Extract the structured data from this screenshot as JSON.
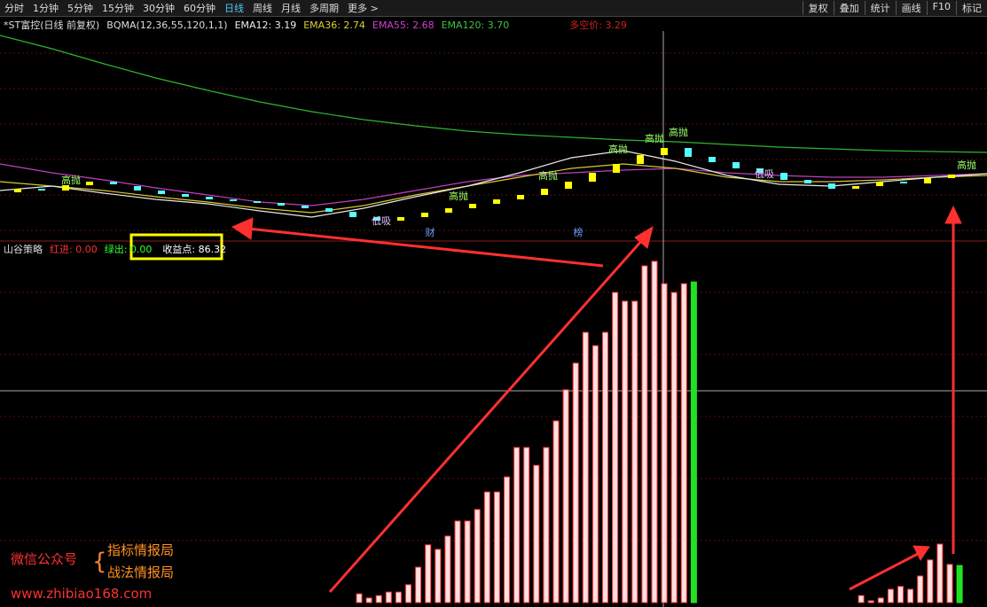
{
  "toolbar": {
    "left": [
      "分时",
      "1分钟",
      "5分钟",
      "15分钟",
      "30分钟",
      "60分钟",
      "日线",
      "周线",
      "月线",
      "多周期",
      "更多 >"
    ],
    "right": [
      "复权",
      "叠加",
      "统计",
      "画线",
      "F10",
      "标记"
    ]
  },
  "main_legend": {
    "stock": "*ST富控(日线 前复权)",
    "indicator": "BQMA(12,36,55,120,1,1)",
    "ema12": "EMA12: 3.19",
    "ema36": "EMA36: 2.74",
    "ema55": "EMA55: 2.68",
    "ema120": "EMA120: 3.70",
    "bull_bear": "多空价: 3.29"
  },
  "indicator_legend": {
    "name": "山谷策略",
    "red_in": "红进: 0.00",
    "green_out": "绿出: 0.00",
    "profit": "收益点: 86.32"
  },
  "watermark": {
    "label": "微信公众号",
    "line1": "指标情报局",
    "line2": "战法情报局",
    "url": "www.zhibiao168.com"
  },
  "chart_data": [
    {
      "type": "line",
      "ylim": [
        2.55,
        4.9
      ],
      "up_color": "#ffff00",
      "down_color": "#54ffff",
      "annotation_color": "#9dff6a",
      "annotations": [
        "高抛",
        "高抛",
        "高抛",
        "高抛",
        "高抛",
        "高抛",
        "高抛",
        "低吸",
        "低吸",
        "财",
        "榜"
      ],
      "series": [
        {
          "color": "#2fb52f",
          "values": [
            4.85,
            4.7,
            4.53,
            4.37,
            4.23,
            4.1,
            3.99,
            3.9,
            3.83,
            3.77,
            3.73,
            3.7,
            3.67,
            3.65,
            3.62,
            3.59,
            3.57,
            3.55,
            3.54,
            3.53
          ]
        },
        {
          "color": "#c040c0",
          "values": [
            3.4,
            3.3,
            3.22,
            3.13,
            3.05,
            2.97,
            2.93,
            3.0,
            3.1,
            3.2,
            3.27,
            3.3,
            3.33,
            3.35,
            3.3,
            3.27,
            3.25,
            3.25,
            3.27,
            3.29
          ]
        },
        {
          "color": "#d8c830",
          "values": [
            3.2,
            3.15,
            3.1,
            3.03,
            2.97,
            2.9,
            2.85,
            2.93,
            3.05,
            3.15,
            3.25,
            3.35,
            3.4,
            3.35,
            3.25,
            3.2,
            3.2,
            3.22,
            3.25,
            3.27
          ]
        },
        {
          "color": "#e8e8e8",
          "values": [
            3.1,
            3.15,
            3.07,
            3.0,
            2.95,
            2.87,
            2.8,
            2.9,
            3.03,
            3.15,
            3.3,
            3.47,
            3.55,
            3.43,
            3.27,
            3.17,
            3.15,
            3.2,
            3.25,
            3.29
          ]
        }
      ],
      "candles": [
        [
          3.08,
          3.12
        ],
        [
          3.12,
          3.1
        ],
        [
          3.1,
          3.16
        ],
        [
          3.16,
          3.2
        ],
        [
          3.2,
          3.17
        ],
        [
          3.15,
          3.1
        ],
        [
          3.1,
          3.06
        ],
        [
          3.06,
          3.03
        ],
        [
          3.03,
          3.0
        ],
        [
          3.0,
          2.98
        ],
        [
          2.98,
          2.96
        ],
        [
          2.96,
          2.93
        ],
        [
          2.93,
          2.9
        ],
        [
          2.9,
          2.86
        ],
        [
          2.86,
          2.8
        ],
        [
          2.8,
          2.76
        ],
        [
          2.76,
          2.8
        ],
        [
          2.8,
          2.85
        ],
        [
          2.85,
          2.9
        ],
        [
          2.9,
          2.95
        ],
        [
          2.95,
          3.0
        ],
        [
          3.0,
          3.05
        ],
        [
          3.05,
          3.12
        ],
        [
          3.12,
          3.2
        ],
        [
          3.2,
          3.3
        ],
        [
          3.3,
          3.4
        ],
        [
          3.4,
          3.5
        ],
        [
          3.5,
          3.58
        ],
        [
          3.58,
          3.48
        ],
        [
          3.48,
          3.42
        ],
        [
          3.42,
          3.35
        ],
        [
          3.35,
          3.3
        ],
        [
          3.3,
          3.22
        ],
        [
          3.22,
          3.18
        ],
        [
          3.18,
          3.12
        ],
        [
          3.12,
          3.15
        ],
        [
          3.15,
          3.2
        ],
        [
          3.2,
          3.18
        ],
        [
          3.18,
          3.24
        ],
        [
          3.24,
          3.28
        ]
      ]
    },
    {
      "type": "bar",
      "ylim": [
        0,
        100
      ],
      "series": [
        {
          "color": "#ff3a3a",
          "values": [
            2.5,
            1.3,
            2.0,
            3.0,
            3.0,
            5.1,
            10.1,
            16.5,
            15.2,
            19.0,
            23.3,
            23.3,
            26.6,
            31.6,
            31.6,
            35.9,
            44.3,
            44.3,
            39.2,
            44.3,
            51.9,
            60.8,
            68.4,
            77.2,
            73.4,
            77.2,
            88.6,
            86.1,
            86.1,
            96.2,
            97.5,
            91.1,
            88.6,
            91.1,
            null,
            null,
            null,
            null,
            null,
            null,
            null,
            null,
            null,
            null,
            null,
            null,
            null,
            null,
            null,
            null,
            null,
            2.0,
            0.5,
            1.3,
            3.8,
            4.6,
            3.8,
            7.6,
            12.2,
            16.7,
            10.9,
            null
          ]
        },
        {
          "color": "#22e022",
          "values": [
            null,
            null,
            null,
            null,
            null,
            null,
            null,
            null,
            null,
            null,
            null,
            null,
            null,
            null,
            null,
            null,
            null,
            null,
            null,
            null,
            null,
            null,
            null,
            null,
            null,
            null,
            null,
            null,
            null,
            null,
            null,
            null,
            null,
            null,
            91.6,
            null,
            null,
            null,
            null,
            null,
            null,
            null,
            null,
            null,
            null,
            null,
            null,
            null,
            null,
            null,
            null,
            null,
            null,
            null,
            null,
            null,
            null,
            null,
            null,
            null,
            null,
            10.6
          ]
        }
      ]
    }
  ]
}
